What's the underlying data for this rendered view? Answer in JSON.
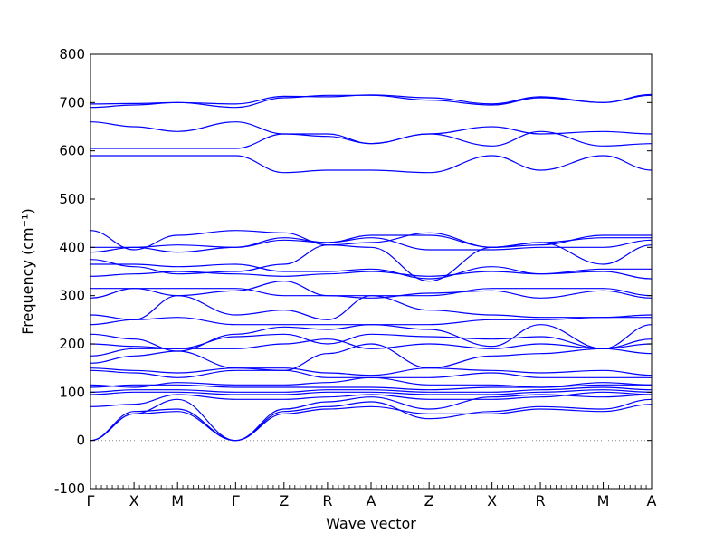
{
  "chart_data": {
    "type": "line",
    "title": "",
    "xlabel": "Wave vector",
    "ylabel": "Frequency (cm⁻¹)",
    "ylim": [
      -100,
      800
    ],
    "yticks": [
      -100,
      0,
      100,
      200,
      300,
      400,
      500,
      600,
      700,
      800
    ],
    "grid": false,
    "line_color": "#0000ff",
    "zero_line_color": "#888888",
    "kpoints": [
      {
        "label": "Γ",
        "pos": 0
      },
      {
        "label": "X",
        "pos": 0.9
      },
      {
        "label": "M",
        "pos": 1.8
      },
      {
        "label": "Γ",
        "pos": 3.0
      },
      {
        "label": "Z",
        "pos": 4.0
      },
      {
        "label": "R",
        "pos": 4.9
      },
      {
        "label": "A",
        "pos": 5.8
      },
      {
        "label": "Z",
        "pos": 7.0
      },
      {
        "label": "X",
        "pos": 8.3
      },
      {
        "label": "R",
        "pos": 9.3
      },
      {
        "label": "M",
        "pos": 10.6
      },
      {
        "label": "A",
        "pos": 11.6
      }
    ],
    "series": [
      {
        "values": [
          0,
          55,
          60,
          0,
          55,
          65,
          70,
          55,
          55,
          65,
          60,
          75
        ]
      },
      {
        "values": [
          0,
          60,
          65,
          0,
          60,
          70,
          80,
          45,
          60,
          70,
          65,
          85
        ]
      },
      {
        "values": [
          0,
          55,
          85,
          0,
          65,
          80,
          90,
          65,
          90,
          95,
          90,
          95
        ]
      },
      {
        "values": [
          70,
          75,
          95,
          85,
          85,
          90,
          95,
          85,
          85,
          90,
          100,
          95
        ]
      },
      {
        "values": [
          95,
          100,
          100,
          95,
          95,
          100,
          100,
          95,
          95,
          100,
          105,
          100
        ]
      },
      {
        "values": [
          100,
          105,
          105,
          100,
          100,
          105,
          105,
          100,
          100,
          105,
          110,
          105
        ]
      },
      {
        "values": [
          110,
          115,
          115,
          110,
          110,
          110,
          110,
          105,
          110,
          110,
          115,
          115
        ]
      },
      {
        "values": [
          115,
          110,
          120,
          115,
          115,
          120,
          130,
          115,
          115,
          110,
          120,
          115
        ]
      },
      {
        "values": [
          145,
          140,
          130,
          145,
          145,
          130,
          130,
          130,
          140,
          130,
          130,
          130
        ]
      },
      {
        "values": [
          150,
          145,
          140,
          150,
          150,
          140,
          135,
          150,
          145,
          140,
          145,
          135
        ]
      },
      {
        "values": [
          160,
          175,
          185,
          150,
          145,
          180,
          200,
          150,
          175,
          180,
          190,
          180
        ]
      },
      {
        "values": [
          175,
          190,
          190,
          190,
          200,
          210,
          190,
          200,
          190,
          200,
          190,
          200
        ]
      },
      {
        "values": [
          200,
          195,
          190,
          215,
          220,
          200,
          220,
          215,
          210,
          215,
          190,
          210
        ]
      },
      {
        "values": [
          220,
          210,
          185,
          220,
          235,
          230,
          240,
          230,
          195,
          240,
          190,
          240
        ]
      },
      {
        "values": [
          240,
          250,
          255,
          240,
          240,
          240,
          240,
          240,
          250,
          250,
          255,
          255
        ]
      },
      {
        "values": [
          260,
          250,
          300,
          260,
          270,
          250,
          300,
          270,
          260,
          255,
          255,
          260
        ]
      },
      {
        "values": [
          295,
          315,
          300,
          310,
          330,
          300,
          295,
          305,
          310,
          295,
          310,
          295
        ]
      },
      {
        "values": [
          315,
          315,
          315,
          315,
          300,
          300,
          300,
          300,
          315,
          315,
          315,
          300
        ]
      },
      {
        "values": [
          340,
          345,
          350,
          345,
          340,
          345,
          350,
          340,
          350,
          345,
          350,
          335
        ]
      },
      {
        "values": [
          365,
          365,
          360,
          365,
          350,
          350,
          355,
          335,
          360,
          345,
          355,
          355
        ]
      },
      {
        "values": [
          375,
          360,
          345,
          350,
          365,
          405,
          400,
          330,
          400,
          410,
          365,
          405
        ]
      },
      {
        "values": [
          390,
          400,
          390,
          400,
          415,
          410,
          420,
          395,
          395,
          400,
          400,
          415
        ]
      },
      {
        "values": [
          400,
          400,
          405,
          400,
          420,
          410,
          425,
          425,
          400,
          410,
          420,
          420
        ]
      },
      {
        "values": [
          435,
          395,
          425,
          435,
          430,
          405,
          410,
          430,
          400,
          405,
          425,
          425
        ]
      },
      {
        "values": [
          590,
          590,
          590,
          590,
          555,
          560,
          560,
          555,
          590,
          560,
          590,
          560
        ]
      },
      {
        "values": [
          605,
          605,
          605,
          605,
          635,
          630,
          615,
          635,
          610,
          640,
          610,
          615
        ]
      },
      {
        "values": [
          660,
          650,
          640,
          660,
          635,
          635,
          615,
          635,
          650,
          635,
          640,
          635
        ]
      },
      {
        "values": [
          690,
          695,
          700,
          690,
          710,
          715,
          715,
          705,
          695,
          710,
          700,
          715
        ]
      },
      {
        "values": [
          697,
          698,
          700,
          697,
          713,
          712,
          716,
          710,
          697,
          712,
          700,
          717
        ]
      }
    ]
  }
}
